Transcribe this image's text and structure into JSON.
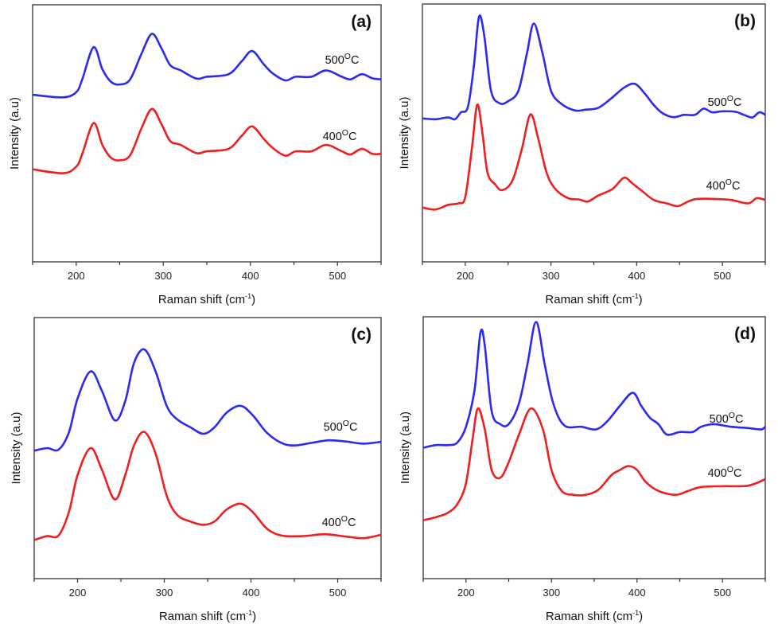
{
  "chart_data": [
    {
      "type": "line",
      "panel_label": "(a)",
      "xlabel": "Raman shift (cm-1)",
      "ylabel": "Intensity (a.u)",
      "xlim": [
        150,
        550
      ],
      "ylim": [
        0,
        1
      ],
      "xticks": [
        200,
        300,
        400,
        500
      ],
      "grid": false,
      "series": [
        {
          "name": "500°C",
          "color": "#2a2af0",
          "points": [
            [
              150,
              0.65
            ],
            [
              185,
              0.64
            ],
            [
              200,
              0.66
            ],
            [
              207,
              0.71
            ],
            [
              220,
              0.835
            ],
            [
              230,
              0.75
            ],
            [
              240,
              0.7
            ],
            [
              250,
              0.69
            ],
            [
              262,
              0.71
            ],
            [
              275,
              0.81
            ],
            [
              287,
              0.887
            ],
            [
              298,
              0.83
            ],
            [
              308,
              0.765
            ],
            [
              320,
              0.745
            ],
            [
              338,
              0.713
            ],
            [
              350,
              0.72
            ],
            [
              375,
              0.73
            ],
            [
              390,
              0.78
            ],
            [
              402,
              0.82
            ],
            [
              415,
              0.77
            ],
            [
              425,
              0.735
            ],
            [
              440,
              0.706
            ],
            [
              452,
              0.72
            ],
            [
              470,
              0.72
            ],
            [
              487,
              0.745
            ],
            [
              505,
              0.72
            ],
            [
              515,
              0.71
            ],
            [
              528,
              0.73
            ],
            [
              540,
              0.714
            ],
            [
              550,
              0.71
            ]
          ]
        },
        {
          "name": "400°C",
          "color": "#f01f1f",
          "points": [
            [
              150,
              0.36
            ],
            [
              185,
              0.345
            ],
            [
              200,
              0.37
            ],
            [
              207,
              0.42
            ],
            [
              220,
              0.54
            ],
            [
              230,
              0.455
            ],
            [
              240,
              0.405
            ],
            [
              250,
              0.395
            ],
            [
              262,
              0.415
            ],
            [
              275,
              0.52
            ],
            [
              287,
              0.595
            ],
            [
              298,
              0.535
            ],
            [
              308,
              0.47
            ],
            [
              320,
              0.455
            ],
            [
              338,
              0.423
            ],
            [
              350,
              0.43
            ],
            [
              375,
              0.44
            ],
            [
              390,
              0.49
            ],
            [
              402,
              0.527
            ],
            [
              415,
              0.48
            ],
            [
              425,
              0.445
            ],
            [
              440,
              0.413
            ],
            [
              452,
              0.43
            ],
            [
              470,
              0.43
            ],
            [
              487,
              0.455
            ],
            [
              505,
              0.43
            ],
            [
              515,
              0.418
            ],
            [
              528,
              0.44
            ],
            [
              540,
              0.42
            ],
            [
              550,
              0.42
            ]
          ]
        }
      ]
    },
    {
      "type": "line",
      "panel_label": "(b)",
      "xlabel": "Raman shift (cm-1)",
      "ylabel": "Intensity (a.u)",
      "xlim": [
        150,
        550
      ],
      "ylim": [
        0,
        1
      ],
      "xticks": [
        200,
        300,
        400,
        500
      ],
      "grid": false,
      "series": [
        {
          "name": "500°C",
          "color": "#2a2af0",
          "points": [
            [
              150,
              0.556
            ],
            [
              165,
              0.553
            ],
            [
              180,
              0.56
            ],
            [
              188,
              0.553
            ],
            [
              195,
              0.58
            ],
            [
              203,
              0.6
            ],
            [
              210,
              0.757
            ],
            [
              216,
              0.95
            ],
            [
              222,
              0.88
            ],
            [
              230,
              0.664
            ],
            [
              240,
              0.615
            ],
            [
              250,
              0.623
            ],
            [
              262,
              0.664
            ],
            [
              272,
              0.81
            ],
            [
              280,
              0.924
            ],
            [
              290,
              0.81
            ],
            [
              300,
              0.664
            ],
            [
              312,
              0.613
            ],
            [
              328,
              0.587
            ],
            [
              340,
              0.59
            ],
            [
              355,
              0.597
            ],
            [
              370,
              0.633
            ],
            [
              385,
              0.675
            ],
            [
              398,
              0.69
            ],
            [
              410,
              0.65
            ],
            [
              420,
              0.608
            ],
            [
              430,
              0.577
            ],
            [
              443,
              0.561
            ],
            [
              455,
              0.57
            ],
            [
              468,
              0.57
            ],
            [
              478,
              0.594
            ],
            [
              488,
              0.58
            ],
            [
              500,
              0.584
            ],
            [
              515,
              0.582
            ],
            [
              525,
              0.57
            ],
            [
              535,
              0.56
            ],
            [
              543,
              0.58
            ],
            [
              550,
              0.57
            ]
          ]
        },
        {
          "name": "400°C",
          "color": "#f01f1f",
          "points": [
            [
              150,
              0.211
            ],
            [
              165,
              0.203
            ],
            [
              180,
              0.221
            ],
            [
              192,
              0.227
            ],
            [
              200,
              0.252
            ],
            [
              208,
              0.448
            ],
            [
              214,
              0.61
            ],
            [
              220,
              0.5
            ],
            [
              226,
              0.345
            ],
            [
              235,
              0.3
            ],
            [
              243,
              0.278
            ],
            [
              255,
              0.315
            ],
            [
              266,
              0.438
            ],
            [
              276,
              0.572
            ],
            [
              285,
              0.479
            ],
            [
              295,
              0.345
            ],
            [
              305,
              0.283
            ],
            [
              320,
              0.247
            ],
            [
              333,
              0.242
            ],
            [
              343,
              0.234
            ],
            [
              355,
              0.257
            ],
            [
              372,
              0.283
            ],
            [
              385,
              0.326
            ],
            [
              395,
              0.304
            ],
            [
              405,
              0.278
            ],
            [
              420,
              0.24
            ],
            [
              435,
              0.227
            ],
            [
              448,
              0.216
            ],
            [
              460,
              0.234
            ],
            [
              470,
              0.244
            ],
            [
              490,
              0.244
            ],
            [
              510,
              0.24
            ],
            [
              530,
              0.227
            ],
            [
              540,
              0.247
            ],
            [
              550,
              0.24
            ]
          ]
        }
      ]
    },
    {
      "type": "line",
      "panel_label": "(c)",
      "xlabel": "Raman shift (cm-1)",
      "ylabel": "Intensity (a.u)",
      "xlim": [
        150,
        550
      ],
      "ylim": [
        0,
        1
      ],
      "xticks": [
        200,
        300,
        400,
        500
      ],
      "grid": false,
      "series": [
        {
          "name": "500°C",
          "color": "#2a2af0",
          "points": [
            [
              150,
              0.49
            ],
            [
              165,
              0.5
            ],
            [
              178,
              0.494
            ],
            [
              190,
              0.56
            ],
            [
              200,
              0.69
            ],
            [
              215,
              0.794
            ],
            [
              228,
              0.72
            ],
            [
              243,
              0.606
            ],
            [
              255,
              0.68
            ],
            [
              265,
              0.825
            ],
            [
              277,
              0.878
            ],
            [
              290,
              0.794
            ],
            [
              303,
              0.66
            ],
            [
              315,
              0.61
            ],
            [
              330,
              0.58
            ],
            [
              345,
              0.555
            ],
            [
              358,
              0.58
            ],
            [
              372,
              0.636
            ],
            [
              388,
              0.662
            ],
            [
              402,
              0.626
            ],
            [
              418,
              0.56
            ],
            [
              435,
              0.52
            ],
            [
              450,
              0.51
            ],
            [
              470,
              0.52
            ],
            [
              490,
              0.53
            ],
            [
              510,
              0.525
            ],
            [
              530,
              0.517
            ],
            [
              550,
              0.524
            ]
          ]
        },
        {
          "name": "400°C",
          "color": "#f01f1f",
          "points": [
            [
              150,
              0.148
            ],
            [
              165,
              0.163
            ],
            [
              178,
              0.165
            ],
            [
              190,
              0.255
            ],
            [
              200,
              0.397
            ],
            [
              215,
              0.5
            ],
            [
              228,
              0.418
            ],
            [
              243,
              0.303
            ],
            [
              255,
              0.397
            ],
            [
              265,
              0.509
            ],
            [
              277,
              0.562
            ],
            [
              290,
              0.479
            ],
            [
              303,
              0.316
            ],
            [
              315,
              0.244
            ],
            [
              330,
              0.219
            ],
            [
              345,
              0.206
            ],
            [
              358,
              0.219
            ],
            [
              372,
              0.265
            ],
            [
              388,
              0.287
            ],
            [
              402,
              0.255
            ],
            [
              418,
              0.193
            ],
            [
              435,
              0.165
            ],
            [
              460,
              0.163
            ],
            [
              485,
              0.17
            ],
            [
              510,
              0.161
            ],
            [
              530,
              0.155
            ],
            [
              550,
              0.168
            ]
          ]
        }
      ]
    },
    {
      "type": "line",
      "panel_label": "(d)",
      "xlabel": "Raman shift (cm-1)",
      "ylabel": "Intensity (a.u)",
      "xlim": [
        150,
        550
      ],
      "ylim": [
        0,
        1
      ],
      "xticks": [
        200,
        300,
        400,
        500
      ],
      "grid": false,
      "series": [
        {
          "name": "500°C",
          "color": "#2a2af0",
          "points": [
            [
              150,
              0.5
            ],
            [
              165,
              0.51
            ],
            [
              180,
              0.51
            ],
            [
              190,
              0.52
            ],
            [
              200,
              0.58
            ],
            [
              210,
              0.72
            ],
            [
              217,
              0.94
            ],
            [
              222,
              0.89
            ],
            [
              230,
              0.64
            ],
            [
              240,
              0.59
            ],
            [
              250,
              0.59
            ],
            [
              262,
              0.67
            ],
            [
              272,
              0.82
            ],
            [
              282,
              0.98
            ],
            [
              292,
              0.82
            ],
            [
              302,
              0.67
            ],
            [
              315,
              0.585
            ],
            [
              335,
              0.58
            ],
            [
              352,
              0.57
            ],
            [
              365,
              0.6
            ],
            [
              380,
              0.66
            ],
            [
              395,
              0.71
            ],
            [
              405,
              0.66
            ],
            [
              415,
              0.615
            ],
            [
              425,
              0.59
            ],
            [
              435,
              0.55
            ],
            [
              450,
              0.56
            ],
            [
              465,
              0.56
            ],
            [
              475,
              0.58
            ],
            [
              490,
              0.59
            ],
            [
              510,
              0.58
            ],
            [
              530,
              0.575
            ],
            [
              545,
              0.57
            ],
            [
              550,
              0.58
            ]
          ]
        },
        {
          "name": "400°C",
          "color": "#f01f1f",
          "points": [
            [
              150,
              0.223
            ],
            [
              165,
              0.235
            ],
            [
              178,
              0.25
            ],
            [
              190,
              0.285
            ],
            [
              200,
              0.365
            ],
            [
              208,
              0.54
            ],
            [
              214,
              0.65
            ],
            [
              222,
              0.57
            ],
            [
              230,
              0.415
            ],
            [
              240,
              0.385
            ],
            [
              250,
              0.445
            ],
            [
              262,
              0.55
            ],
            [
              276,
              0.65
            ],
            [
              290,
              0.57
            ],
            [
              300,
              0.415
            ],
            [
              312,
              0.335
            ],
            [
              325,
              0.32
            ],
            [
              340,
              0.32
            ],
            [
              355,
              0.34
            ],
            [
              370,
              0.395
            ],
            [
              380,
              0.415
            ],
            [
              390,
              0.43
            ],
            [
              400,
              0.415
            ],
            [
              410,
              0.37
            ],
            [
              425,
              0.335
            ],
            [
              445,
              0.32
            ],
            [
              460,
              0.335
            ],
            [
              475,
              0.35
            ],
            [
              500,
              0.353
            ],
            [
              530,
              0.355
            ],
            [
              550,
              0.38
            ]
          ]
        }
      ]
    }
  ]
}
